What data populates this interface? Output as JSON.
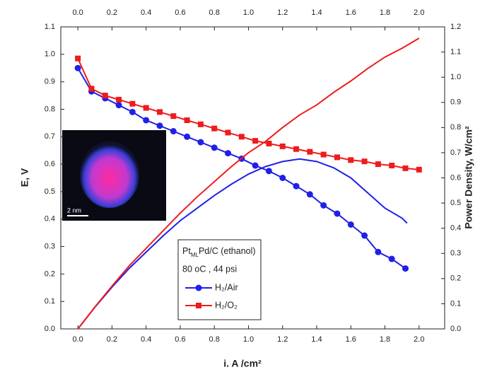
{
  "chart_data": {
    "type": "line",
    "xlabel": "i. A /cm²",
    "ylabel": "E, V",
    "y2label": "Power Density, W/cm²",
    "xlim": [
      -0.1,
      2.15
    ],
    "ylim": [
      0,
      1.1
    ],
    "y2lim": [
      0,
      1.2
    ],
    "xticks": [
      {
        "value": 0,
        "label": "0.0"
      },
      {
        "value": 0.2,
        "label": "0.2"
      },
      {
        "value": 0.4,
        "label": "0.4"
      },
      {
        "value": 0.6,
        "label": "0.6"
      },
      {
        "value": 0.8,
        "label": "0.8"
      },
      {
        "value": 1,
        "label": "1.0"
      },
      {
        "value": 1.2,
        "label": "1.2"
      },
      {
        "value": 1.4,
        "label": "1.4"
      },
      {
        "value": 1.6,
        "label": "1.6"
      },
      {
        "value": 1.8,
        "label": "1.8"
      },
      {
        "value": 2,
        "label": "2.0"
      }
    ],
    "yticks": [
      {
        "value": 0,
        "label": "0.0"
      },
      {
        "value": 0.1,
        "label": "0.1"
      },
      {
        "value": 0.2,
        "label": "0.2"
      },
      {
        "value": 0.3,
        "label": "0.3"
      },
      {
        "value": 0.4,
        "label": "0.4"
      },
      {
        "value": 0.5,
        "label": "0.5"
      },
      {
        "value": 0.6,
        "label": "0.6"
      },
      {
        "value": 0.7,
        "label": "0.7"
      },
      {
        "value": 0.8,
        "label": "0.8"
      },
      {
        "value": 0.9,
        "label": "0.9"
      },
      {
        "value": 1,
        "label": "1.0"
      },
      {
        "value": 1.1,
        "label": "1.1"
      }
    ],
    "y2ticks": [
      {
        "value": 0,
        "label": "0.0"
      },
      {
        "value": 0.1,
        "label": "0.1"
      },
      {
        "value": 0.2,
        "label": "0.2"
      },
      {
        "value": 0.3,
        "label": "0.3"
      },
      {
        "value": 0.4,
        "label": "0.4"
      },
      {
        "value": 0.5,
        "label": "0.5"
      },
      {
        "value": 0.6,
        "label": "0.6"
      },
      {
        "value": 0.7,
        "label": "0.7"
      },
      {
        "value": 0.8,
        "label": "0.8"
      },
      {
        "value": 0.9,
        "label": "0.9"
      },
      {
        "value": 1,
        "label": "1.0"
      },
      {
        "value": 1.1,
        "label": "1.1"
      },
      {
        "value": 1.2,
        "label": "1.2"
      }
    ],
    "legend_title": [
      "Pt",
      "ML",
      "Pd/C (ethanol)"
    ],
    "annotation": "80 oC , 44 psi",
    "inset_label": "2 nm",
    "series": [
      {
        "name": "H₂/Air",
        "color": "#2020e8",
        "marker": "circle",
        "axis": "y",
        "x": [
          0,
          0.08,
          0.16,
          0.24,
          0.32,
          0.4,
          0.48,
          0.56,
          0.64,
          0.72,
          0.8,
          0.88,
          0.96,
          1.04,
          1.12,
          1.2,
          1.28,
          1.36,
          1.44,
          1.52,
          1.6,
          1.68,
          1.76,
          1.84,
          1.92
        ],
        "values": [
          0.95,
          0.865,
          0.84,
          0.815,
          0.79,
          0.76,
          0.74,
          0.72,
          0.7,
          0.68,
          0.66,
          0.64,
          0.62,
          0.595,
          0.575,
          0.55,
          0.52,
          0.49,
          0.45,
          0.42,
          0.38,
          0.34,
          0.28,
          0.255,
          0.22
        ]
      },
      {
        "name": "H₂/O₂",
        "color": "#ee1c1c",
        "marker": "square",
        "axis": "y",
        "x": [
          0,
          0.08,
          0.16,
          0.24,
          0.32,
          0.4,
          0.48,
          0.56,
          0.64,
          0.72,
          0.8,
          0.88,
          0.96,
          1.04,
          1.12,
          1.2,
          1.28,
          1.36,
          1.44,
          1.52,
          1.6,
          1.68,
          1.76,
          1.84,
          1.92,
          2.0
        ],
        "values": [
          0.985,
          0.875,
          0.85,
          0.835,
          0.82,
          0.805,
          0.79,
          0.775,
          0.76,
          0.745,
          0.73,
          0.715,
          0.7,
          0.685,
          0.675,
          0.665,
          0.655,
          0.645,
          0.635,
          0.625,
          0.615,
          0.61,
          0.6,
          0.595,
          0.585,
          0.58
        ]
      },
      {
        "color": "#2020e8",
        "axis": "y2",
        "x": [
          0,
          0.1,
          0.2,
          0.3,
          0.4,
          0.5,
          0.6,
          0.7,
          0.8,
          0.9,
          1.0,
          1.1,
          1.2,
          1.3,
          1.4,
          1.5,
          1.6,
          1.7,
          1.8,
          1.9,
          1.93
        ],
        "values": [
          0,
          0.086,
          0.166,
          0.24,
          0.305,
          0.37,
          0.43,
          0.48,
          0.53,
          0.575,
          0.615,
          0.645,
          0.665,
          0.675,
          0.665,
          0.64,
          0.6,
          0.54,
          0.48,
          0.44,
          0.42
        ]
      },
      {
        "color": "#ee1c1c",
        "axis": "y2",
        "x": [
          0,
          0.1,
          0.2,
          0.3,
          0.4,
          0.5,
          0.6,
          0.7,
          0.8,
          0.9,
          1.0,
          1.1,
          1.2,
          1.3,
          1.4,
          1.5,
          1.6,
          1.7,
          1.8,
          1.9,
          2.0
        ],
        "values": [
          0,
          0.087,
          0.17,
          0.25,
          0.32,
          0.39,
          0.46,
          0.525,
          0.585,
          0.645,
          0.7,
          0.745,
          0.8,
          0.85,
          0.89,
          0.94,
          0.985,
          1.035,
          1.08,
          1.115,
          1.155
        ]
      }
    ]
  }
}
